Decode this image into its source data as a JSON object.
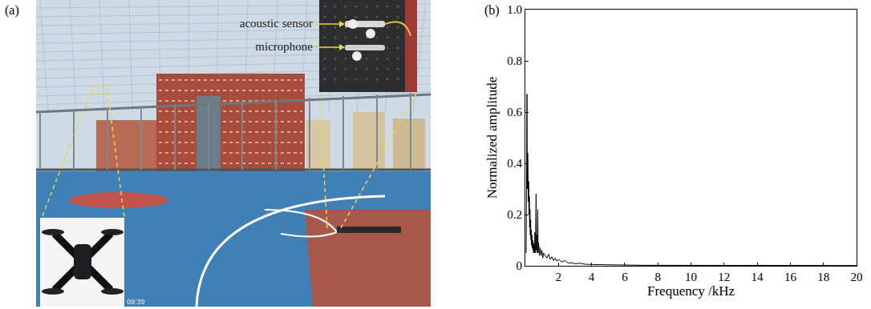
{
  "photo": {
    "label": "(a)",
    "annotations": [
      "acoustic sensor",
      "microphone"
    ],
    "timestamp": "09:39"
  },
  "chart_data": {
    "type": "line",
    "annotations": [
      "(b)"
    ],
    "x_label": "Frequency /kHz",
    "y_label": "Normalized amplitude",
    "color": "#000000",
    "grid": false,
    "x": [
      0.05,
      0.08,
      0.1,
      0.12,
      0.14,
      0.16,
      0.18,
      0.2,
      0.22,
      0.24,
      0.26,
      0.28,
      0.3,
      0.32,
      0.34,
      0.36,
      0.38,
      0.4,
      0.42,
      0.44,
      0.46,
      0.48,
      0.5,
      0.52,
      0.55,
      0.58,
      0.6,
      0.62,
      0.65,
      0.67,
      0.7,
      0.72,
      0.75,
      0.77,
      0.8,
      0.85,
      0.9,
      0.95,
      1.0,
      1.05,
      1.1,
      1.2,
      1.3,
      1.4,
      1.5,
      1.6,
      1.7,
      1.8,
      1.9,
      2.0,
      2.2,
      2.4,
      2.6,
      2.8,
      3.0,
      3.3,
      3.6,
      4.0,
      4.5,
      5.0,
      6.0,
      7.0,
      8.0,
      10.0,
      12.0,
      14.0,
      16.0,
      18.0,
      20.0
    ],
    "values": [
      0.05,
      0.35,
      0.67,
      0.3,
      0.44,
      0.38,
      0.25,
      0.33,
      0.2,
      0.27,
      0.15,
      0.22,
      0.12,
      0.18,
      0.1,
      0.14,
      0.08,
      0.12,
      0.07,
      0.1,
      0.06,
      0.09,
      0.05,
      0.08,
      0.05,
      0.13,
      0.05,
      0.1,
      0.28,
      0.06,
      0.12,
      0.05,
      0.22,
      0.05,
      0.09,
      0.04,
      0.07,
      0.04,
      0.06,
      0.03,
      0.05,
      0.04,
      0.03,
      0.045,
      0.025,
      0.035,
      0.02,
      0.03,
      0.018,
      0.025,
      0.015,
      0.02,
      0.01,
      0.012,
      0.008,
      0.01,
      0.006,
      0.005,
      0.004,
      0.003,
      0.003,
      0.002,
      0.002,
      0.001,
      0.001,
      0.001,
      0.001,
      0.001,
      0.001
    ],
    "xlim": [
      0,
      20
    ],
    "xticks": [
      2,
      4,
      6,
      8,
      10,
      12,
      14,
      16,
      18,
      20
    ],
    "ylim": [
      0,
      1
    ],
    "yticks": [
      0,
      0.2,
      0.4,
      0.6,
      0.8,
      {
        "value": 1,
        "label": "1.0"
      }
    ]
  }
}
